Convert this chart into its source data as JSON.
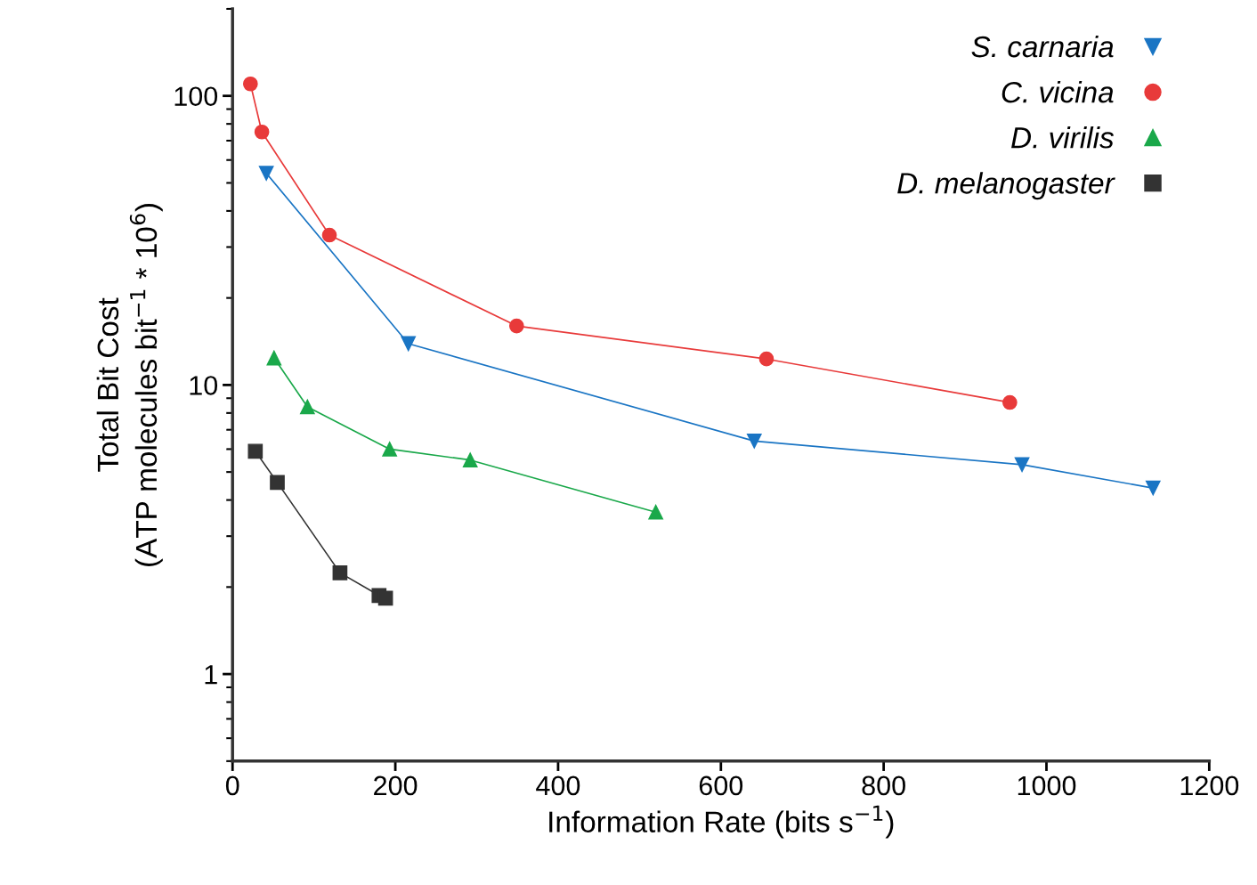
{
  "chart_data": {
    "type": "line",
    "xlabel": "Information Rate (bits s$^{−1}$)",
    "ylabel": "Total Bit Cost\n(ATP molecules bit$^{−1}$ * 10$^{6}$)",
    "xlim": [
      0,
      1200
    ],
    "xticks": [
      0,
      200,
      400,
      600,
      800,
      1000,
      1200
    ],
    "ylim": [
      0.5,
      200
    ],
    "yticks": [
      1,
      10,
      100
    ],
    "log": "y",
    "grid": false,
    "legend": "top right",
    "series": [
      {
        "name": "S. carnaria",
        "color": "#1a75c4",
        "marker": "triangle_down",
        "x": [
          41.5,
          216,
          641,
          970,
          1131
        ],
        "values": [
          54,
          13.9,
          6.4,
          5.3,
          4.4
        ]
      },
      {
        "name": "C. vicina",
        "color": "#e83a3a",
        "marker": "circle",
        "x": [
          22,
          36,
          119,
          349,
          656,
          955
        ],
        "values": [
          110,
          75,
          33,
          16,
          12.3,
          8.7
        ]
      },
      {
        "name": "D. virilis",
        "color": "#1aa84a",
        "marker": "triangle",
        "x": [
          51,
          92,
          193,
          292,
          520
        ],
        "values": [
          12.4,
          8.4,
          6.0,
          5.5,
          3.63
        ]
      },
      {
        "name": "D. melanogaster",
        "color": "#333333",
        "marker": "square",
        "x": [
          28,
          55,
          132,
          180,
          188
        ],
        "values": [
          5.9,
          4.6,
          2.24,
          1.87,
          1.83
        ]
      }
    ]
  }
}
